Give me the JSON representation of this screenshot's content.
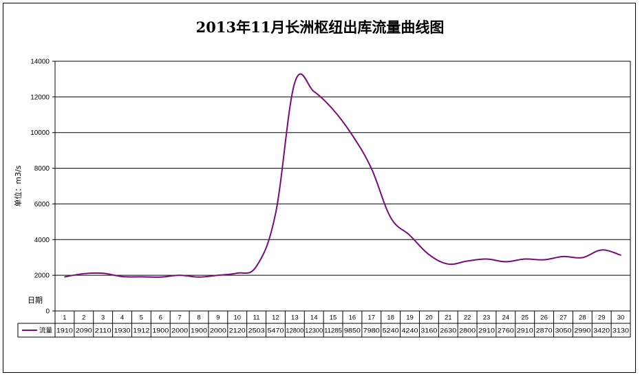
{
  "chart_data": {
    "type": "line",
    "title": "2013年11月长洲枢纽出库流量曲线图",
    "ylabel": "单位：m3/s",
    "xlabel": "日期",
    "ylim": [
      0,
      14000
    ],
    "yticks": [
      "0",
      "2000",
      "4000",
      "6000",
      "8000",
      "10000",
      "12000",
      "14000"
    ],
    "categories": [
      "1",
      "2",
      "3",
      "4",
      "5",
      "6",
      "7",
      "8",
      "9",
      "10",
      "11",
      "12",
      "13",
      "14",
      "15",
      "16",
      "17",
      "18",
      "19",
      "20",
      "21",
      "22",
      "23",
      "24",
      "25",
      "26",
      "27",
      "28",
      "29",
      "30"
    ],
    "series": [
      {
        "name": "流量",
        "color": "#7a0a7a",
        "values": [
          1910,
          2090,
          2110,
          1930,
          1912,
          1900,
          2000,
          1900,
          2000,
          2120,
          2503,
          5470,
          12800,
          12300,
          11285,
          9850,
          7980,
          5240,
          4240,
          3160,
          2630,
          2800,
          2910,
          2760,
          2910,
          2870,
          3050,
          2990,
          3420,
          3130
        ]
      }
    ],
    "grid": true,
    "data_table": true
  }
}
